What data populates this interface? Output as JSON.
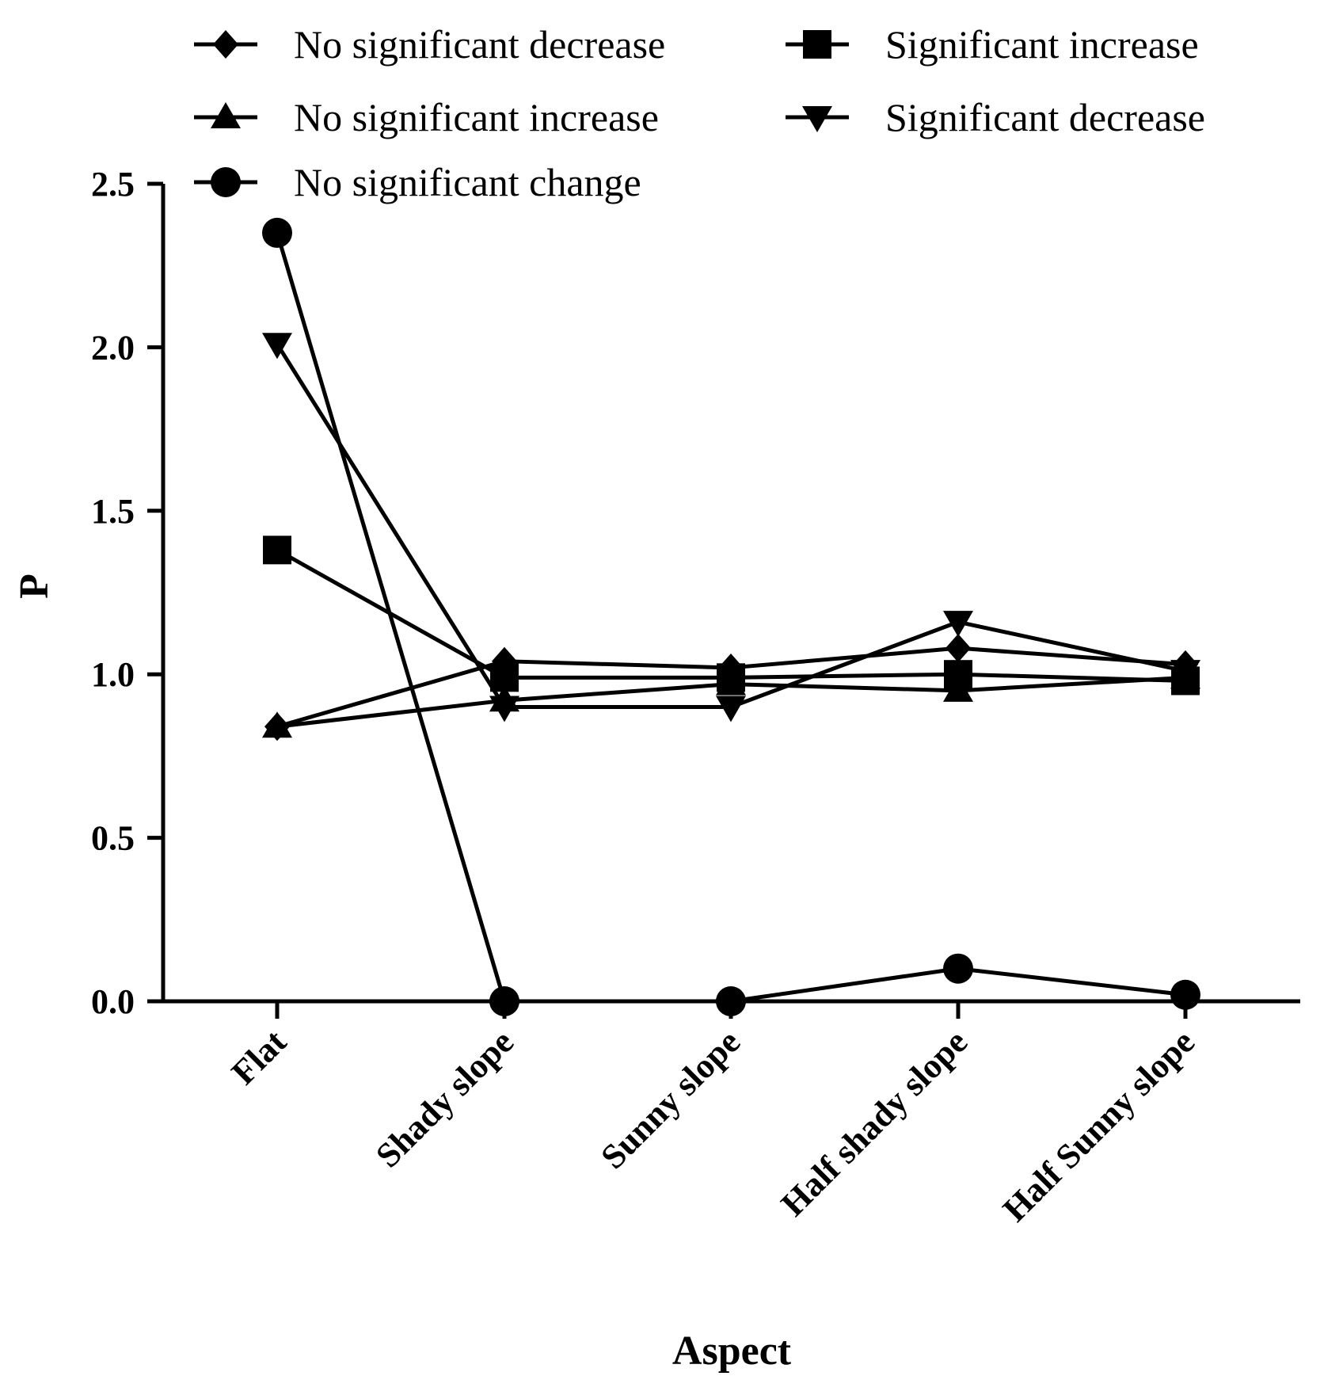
{
  "chart_data": {
    "type": "line",
    "title": "",
    "xlabel": "Aspect",
    "ylabel": "P",
    "categories": [
      "Flat",
      "Shady slope",
      "Sunny slope",
      "Half shady slope",
      "Half Sunny slope"
    ],
    "ylim": [
      0,
      2.5
    ],
    "yticks": [
      "0.0",
      "0.5",
      "1.0",
      "1.5",
      "2.0",
      "2.5"
    ],
    "grid": false,
    "legend_position": "top",
    "series": [
      {
        "name": "No significant decrease",
        "marker": "diamond",
        "values": [
          0.84,
          1.04,
          1.02,
          1.08,
          1.03
        ]
      },
      {
        "name": "No significant increase",
        "marker": "triangle-up",
        "values": [
          0.84,
          0.92,
          0.97,
          0.95,
          0.99
        ]
      },
      {
        "name": "No significant change",
        "marker": "circle",
        "values": [
          2.35,
          0.0,
          0.0,
          0.1,
          0.02
        ]
      },
      {
        "name": "Significant increase",
        "marker": "square",
        "values": [
          1.38,
          0.99,
          0.99,
          1.0,
          0.98
        ]
      },
      {
        "name": "Significant decrease",
        "marker": "triangle-down",
        "values": [
          2.01,
          0.9,
          0.9,
          1.16,
          1.01
        ]
      }
    ]
  }
}
